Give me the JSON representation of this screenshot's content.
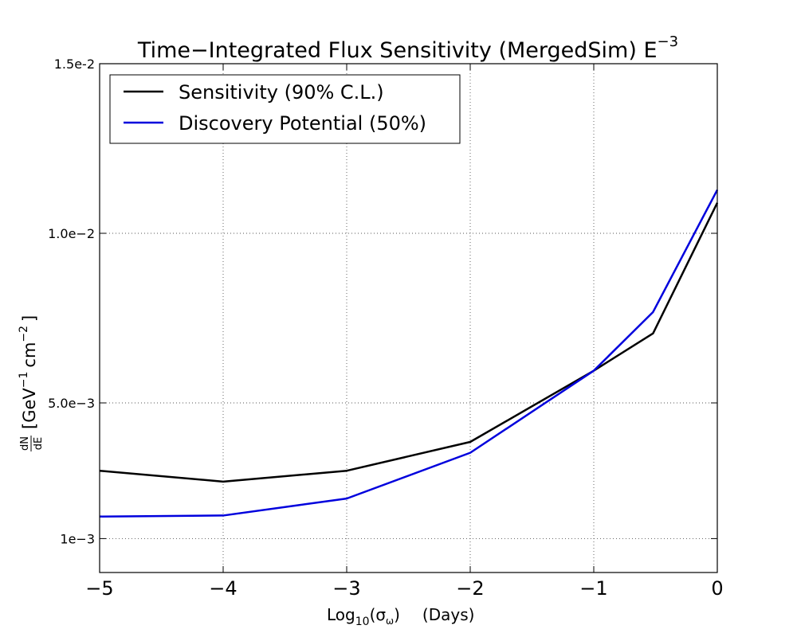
{
  "chart_data": {
    "type": "line",
    "title_main": "Time−Integrated Flux Sensitivity (MergedSim) E",
    "title_exponent": "−3",
    "xlabel_base": "Log",
    "xlabel_sub": "10",
    "xlabel_arg": "(σ",
    "xlabel_arg_sub": "ω",
    "xlabel_close": ")",
    "xlabel_units": "(Days)",
    "ylabel_frac_num": "dN",
    "ylabel_frac_den": "dE",
    "ylabel_parts": {
      "open": "[GeV",
      "exp1": "−1",
      "mid": "cm",
      "exp2": "−2",
      "close": "]"
    },
    "xlim": [
      -5,
      0
    ],
    "ylim": [
      0.0,
      0.015
    ],
    "x_ticks": [
      {
        "value": -5,
        "label": "−5"
      },
      {
        "value": -4,
        "label": "−4"
      },
      {
        "value": -3,
        "label": "−3"
      },
      {
        "value": -2,
        "label": "−2"
      },
      {
        "value": -1,
        "label": "−1"
      },
      {
        "value": 0,
        "label": "0"
      }
    ],
    "y_ticks": [
      {
        "value": 0.001,
        "label": "1e−3"
      },
      {
        "value": 0.005,
        "label": "5.0e−3"
      },
      {
        "value": 0.01,
        "label": "1.0e−2"
      },
      {
        "value": 0.015,
        "label": "1.5e-2"
      }
    ],
    "grid": true,
    "legend_position": "top-left",
    "series": [
      {
        "name": "Sensitivity (90% C.L.)",
        "color": "#000000",
        "x": [
          -5,
          -4,
          -3,
          -2,
          -1,
          -0.52,
          0
        ],
        "y": [
          0.003,
          0.00268,
          0.003,
          0.00385,
          0.00595,
          0.00705,
          0.0109
        ]
      },
      {
        "name": "Discovery Potential (50%)",
        "color": "#0000dd",
        "x": [
          -5,
          -4,
          -3,
          -2,
          -1,
          -0.52,
          0
        ],
        "y": [
          0.00165,
          0.00168,
          0.00218,
          0.00353,
          0.00595,
          0.00768,
          0.01128
        ]
      }
    ]
  }
}
